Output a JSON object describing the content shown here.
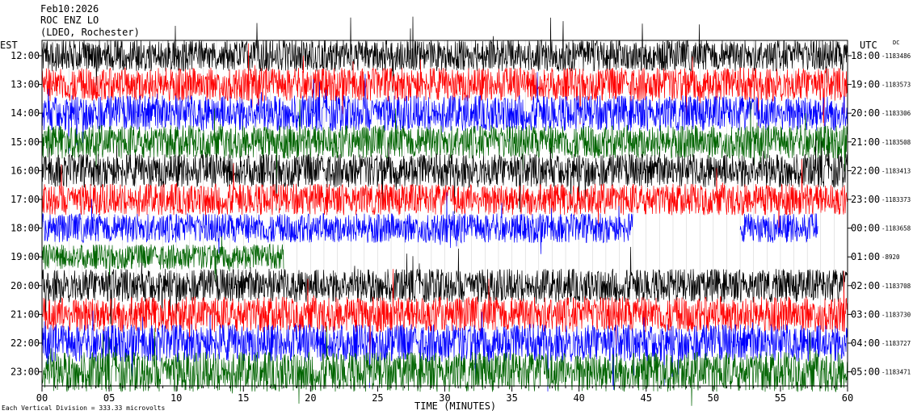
{
  "header": {
    "date": "Feb10:2026",
    "station": "ROC ENZ LO",
    "network": "(LDEO, Rochester)"
  },
  "left_axis_label": "EST",
  "right_axis_label": "UTC",
  "dc_label": "DC",
  "scale_note": "Each Vertical Division =  333.33 microvolts",
  "chart_data": {
    "type": "line",
    "xlabel": "TIME (MINUTES)",
    "xlim": [
      0,
      60
    ],
    "x_ticks": [
      "00",
      "05",
      "10",
      "15",
      "20",
      "25",
      "30",
      "35",
      "40",
      "45",
      "50",
      "55",
      "60"
    ],
    "trace_colors": [
      "#000000",
      "#ff0000",
      "#0000ff",
      "#006400"
    ],
    "rows": [
      {
        "est": "12:00",
        "utc": "18:00",
        "dc": "-1183486",
        "color": "#000000",
        "amplitude": 0.75
      },
      {
        "est": "13:00",
        "utc": "19:00",
        "dc": "-1183573",
        "color": "#ff0000",
        "amplitude": 0.8
      },
      {
        "est": "14:00",
        "utc": "20:00",
        "dc": "-1183306",
        "color": "#0000ff",
        "amplitude": 0.85
      },
      {
        "est": "15:00",
        "utc": "21:00",
        "dc": "-1183508",
        "color": "#006400",
        "amplitude": 0.8
      },
      {
        "est": "16:00",
        "utc": "22:00",
        "dc": "-1183413",
        "color": "#000000",
        "amplitude": 0.8
      },
      {
        "est": "17:00",
        "utc": "23:00",
        "dc": "-1183373",
        "color": "#ff0000",
        "amplitude": 0.75
      },
      {
        "est": "18:00",
        "utc": "00:00",
        "dc": "-1183658",
        "color": "#0000ff",
        "amplitude": 0.7,
        "segments": [
          [
            0,
            44
          ],
          [
            52,
            57.8
          ]
        ]
      },
      {
        "est": "19:00",
        "utc": "01:00",
        "dc": "-8920",
        "color": "#006400",
        "amplitude": 0.6,
        "segments": [
          [
            0,
            18
          ]
        ]
      },
      {
        "est": "20:00",
        "utc": "02:00",
        "dc": "-1183708",
        "color": "#000000",
        "amplitude": 0.8
      },
      {
        "est": "21:00",
        "utc": "03:00",
        "dc": "-1183730",
        "color": "#ff0000",
        "amplitude": 0.85
      },
      {
        "est": "22:00",
        "utc": "04:00",
        "dc": "-1183727",
        "color": "#0000ff",
        "amplitude": 0.9
      },
      {
        "est": "23:00",
        "utc": "05:00",
        "dc": "-1183471",
        "color": "#006400",
        "amplitude": 0.95
      }
    ]
  }
}
